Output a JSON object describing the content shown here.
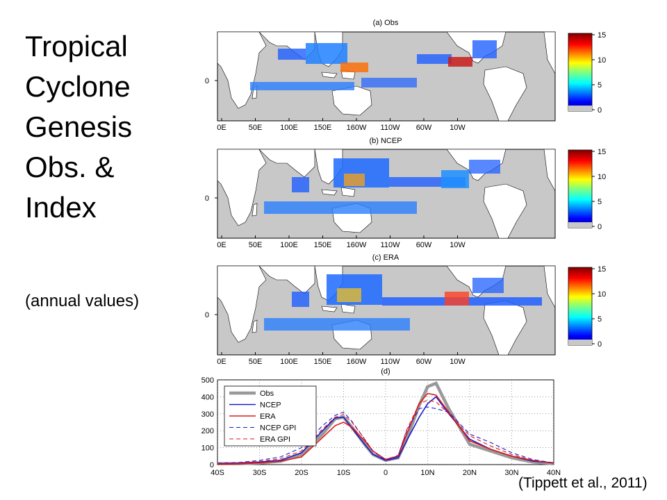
{
  "slide": {
    "title_lines": [
      "Tropical",
      "Cyclone",
      "Genesis",
      "Obs. &",
      "Index"
    ],
    "subtitle": "(annual values)",
    "citation": "(Tippett et al., 2011)"
  },
  "maps": {
    "lon_ticks": [
      "0E",
      "50E",
      "100E",
      "150E",
      "160W",
      "110W",
      "60W",
      "10W"
    ],
    "lat_tick": "0",
    "colorbar_ticks": [
      "15",
      "10",
      "5",
      "0"
    ],
    "panels": [
      {
        "title": "(a) Obs"
      },
      {
        "title": "(b) NCEP"
      },
      {
        "title": "(c) ERA"
      }
    ]
  },
  "chart_data": {
    "type": "line",
    "title": "(d)",
    "x_ticks": [
      "40S",
      "30S",
      "20S",
      "10S",
      "0",
      "10N",
      "20N",
      "30N",
      "40N"
    ],
    "x": [
      -40,
      -35,
      -30,
      -25,
      -20,
      -15,
      -12,
      -10,
      -8,
      -5,
      -3,
      0,
      3,
      5,
      8,
      10,
      12,
      15,
      20,
      25,
      30,
      35,
      40
    ],
    "ylim": [
      0,
      500
    ],
    "y_ticks": [
      "500",
      "400",
      "300",
      "200",
      "100",
      "0"
    ],
    "xlim": [
      -40,
      40
    ],
    "grid": true,
    "legend_position": "top-left",
    "series": [
      {
        "name": "Obs",
        "color": "#999999",
        "style": "solid-thick",
        "values": [
          5,
          5,
          10,
          20,
          60,
          180,
          270,
          280,
          220,
          120,
          60,
          25,
          40,
          150,
          350,
          460,
          480,
          330,
          120,
          80,
          40,
          15,
          5
        ]
      },
      {
        "name": "NCEP",
        "color": "#1a1acc",
        "style": "solid",
        "values": [
          5,
          8,
          15,
          25,
          70,
          200,
          275,
          280,
          215,
          120,
          60,
          25,
          40,
          140,
          280,
          360,
          400,
          300,
          150,
          90,
          50,
          20,
          10
        ]
      },
      {
        "name": "ERA",
        "color": "#e01818",
        "style": "solid",
        "values": [
          2,
          4,
          10,
          20,
          45,
          160,
          230,
          250,
          220,
          140,
          80,
          30,
          50,
          180,
          360,
          420,
          410,
          310,
          140,
          90,
          50,
          25,
          8
        ]
      },
      {
        "name": "NCEP GPI",
        "color": "#1a1acc",
        "style": "dashed",
        "values": [
          8,
          12,
          25,
          45,
          100,
          230,
          290,
          310,
          255,
          150,
          80,
          25,
          50,
          200,
          330,
          340,
          330,
          310,
          180,
          130,
          70,
          30,
          10
        ]
      },
      {
        "name": "ERA GPI",
        "color": "#e01818",
        "style": "dashed",
        "values": [
          5,
          8,
          18,
          35,
          80,
          210,
          280,
          295,
          250,
          150,
          80,
          30,
          55,
          205,
          360,
          380,
          370,
          300,
          170,
          110,
          60,
          25,
          8
        ]
      }
    ]
  }
}
